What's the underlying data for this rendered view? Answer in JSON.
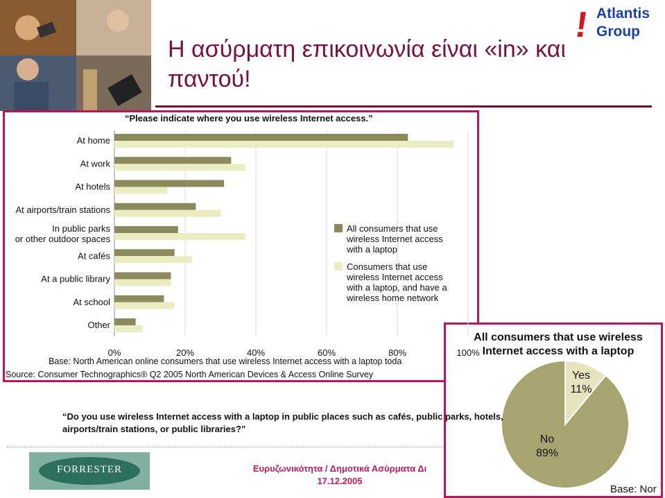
{
  "slide": {
    "title_line1": "Η ασύρματη επικοινωνία είναι «in» και",
    "title_line2": "παντού!",
    "logo_text1": "Atlantis",
    "logo_text2": "Group",
    "logo_mark": "!",
    "footer_line1": "Ευρυζωνικότητα / Δημοτικά Ασύρματα Δι",
    "footer_line2": "17.12.2005",
    "forrester_logo": "FORRESTER",
    "question2": "“Do you use wireless Internet access with a laptop in public places such as cafés, public parks, hotels, airports/train stations, or public libraries?”"
  },
  "bar_chart": {
    "question": "“Please indicate where you use wireless Internet access.”",
    "base": "Base: North American online consumers that use wireless Internet access with a laptop toda",
    "source": "Source: Consumer Technographics® Q2 2005 North American Devices & Access Online Survey",
    "legend": [
      "All consumers that use wireless Internet access with a laptop",
      "Consumers that use wireless Internet access with a laptop, and have a wireless home network"
    ]
  },
  "pie_chart": {
    "title_line1": "All consumers that use wireless",
    "title_line2": "Internet access with a laptop",
    "base": "Base: Nor"
  },
  "colors": {
    "series_dark": "#8a8a5c",
    "series_light": "#ececc2",
    "frame": "#c0125a",
    "title": "#7a1040",
    "pie_no": "#a8a470",
    "pie_yes": "#e6e3bf"
  },
  "chart_data": [
    {
      "type": "bar",
      "orientation": "horizontal",
      "categories": [
        "At home",
        "At work",
        "At hotels",
        "At airports/train stations",
        "In public parks or other outdoor spaces",
        "At cafés",
        "At a public library",
        "At school",
        "Other"
      ],
      "series": [
        {
          "name": "All consumers that use wireless Internet access with a laptop",
          "values": [
            83,
            33,
            31,
            23,
            18,
            17,
            16,
            14,
            6
          ]
        },
        {
          "name": "Consumers that use wireless Internet access with a laptop, and have a wireless home network",
          "values": [
            96,
            37,
            15,
            30,
            37,
            22,
            16,
            17,
            8
          ]
        }
      ],
      "xlim": [
        0,
        100
      ],
      "xticks": [
        "0%",
        "20%",
        "40%",
        "60%",
        "80%",
        "100%"
      ],
      "grid": true,
      "legend_position": "right"
    },
    {
      "type": "pie",
      "title": "All consumers that use wireless Internet access with a laptop",
      "labels": [
        "Yes",
        "No"
      ],
      "values": [
        11,
        89
      ],
      "value_labels": [
        "11%",
        "89%"
      ]
    }
  ]
}
